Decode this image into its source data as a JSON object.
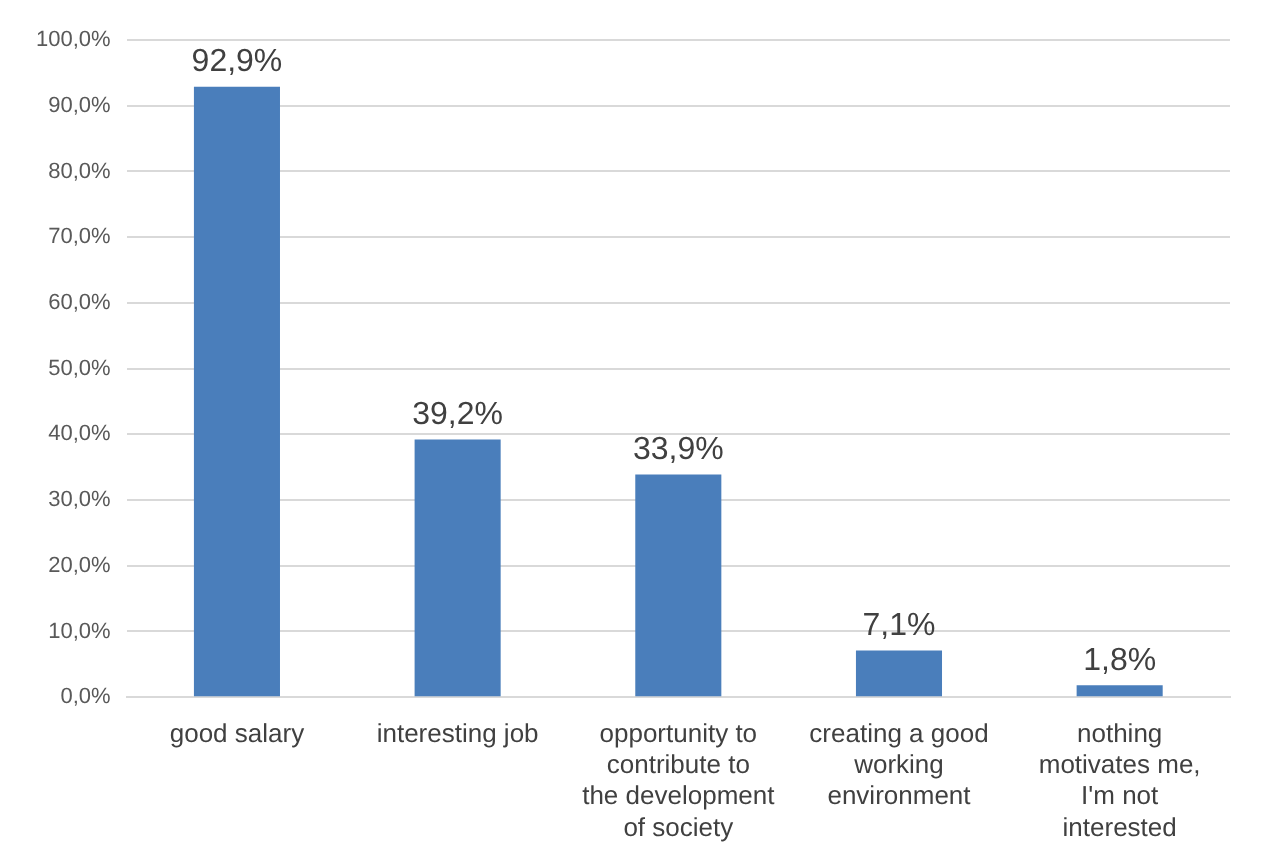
{
  "chart_data": {
    "type": "bar",
    "categories": [
      "good salary",
      "interesting job",
      "opportunity to contribute to the development of society",
      "creating a good working environment",
      "nothing motivates me, I'm not interested"
    ],
    "values": [
      92.9,
      39.2,
      33.9,
      7.1,
      1.8
    ],
    "value_labels": [
      "92,9%",
      "39,2%",
      "33,9%",
      "7,1%",
      "1,8%"
    ],
    "color": "#4a7ebb",
    "ylim": [
      0,
      100
    ],
    "yticks": [
      {
        "value": 0,
        "label": "0,0%"
      },
      {
        "value": 10,
        "label": "10,0%"
      },
      {
        "value": 20,
        "label": "20,0%"
      },
      {
        "value": 30,
        "label": "30,0%"
      },
      {
        "value": 40,
        "label": "40,0%"
      },
      {
        "value": 50,
        "label": "50,0%"
      },
      {
        "value": 60,
        "label": "60,0%"
      },
      {
        "value": 70,
        "label": "70,0%"
      },
      {
        "value": 80,
        "label": "80,0%"
      },
      {
        "value": 90,
        "label": "90,0%"
      },
      {
        "value": 100,
        "label": "100,0%"
      }
    ],
    "grid": "y"
  }
}
